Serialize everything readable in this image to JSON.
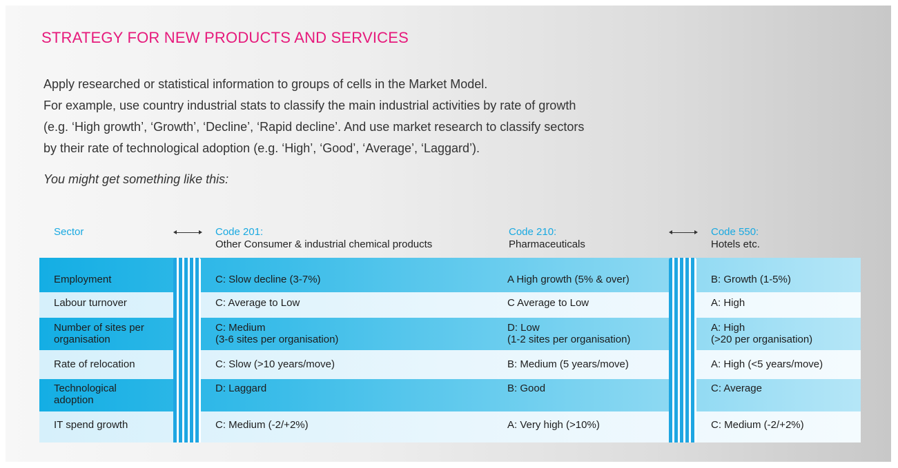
{
  "title": "STRATEGY FOR NEW PRODUCTS AND SERVICES",
  "intro_lines": [
    "Apply researched or statistical information to groups of cells in the Market Model.",
    "For example, use country industrial stats to classify the main industrial activities by rate of growth",
    "(e.g. ‘High growth’, ‘Growth’, ‘Decline’, ‘Rapid decline’.  And use market research to classify sectors",
    "by their rate of technological adoption (e.g. ‘High’, ‘Good’, ‘Average’, ‘Laggard’)."
  ],
  "note": "You might get something like this:",
  "colors": {
    "title": "#e6197b",
    "accent_blue": "#19a9e1",
    "stripe_blue": "#1ea6e2"
  },
  "table": {
    "headers": {
      "sector": "Sector",
      "col1_code": "Code 201:",
      "col1_name": "Other Consumer & industrial chemical products",
      "col2_code": "Code 210:",
      "col2_name": "Pharmaceuticals",
      "col3_code": "Code 550:",
      "col3_name": "Hotels etc."
    },
    "rows": [
      {
        "sector": "Employment",
        "c1": "C: Slow decline (3-7%)",
        "c2": "A High growth (5% & over)",
        "c3": "B: Growth (1-5%)"
      },
      {
        "sector": "Labour turnover",
        "c1": "C: Average to Low",
        "c2": "C Average to Low",
        "c3": "A: High"
      },
      {
        "sector_l1": "Number of sites per",
        "sector_l2": "organisation",
        "c1_l1": "C: Medium",
        "c1_l2": "(3-6 sites per organisation)",
        "c2_l1": "D: Low",
        "c2_l2": "(1-2 sites per organisation)",
        "c3_l1": "A: High",
        "c3_l2": "(>20 per organisation)"
      },
      {
        "sector": "Rate of relocation",
        "c1": "C: Slow (>10 years/move)",
        "c2": "B: Medium (5 years/move)",
        "c3": "A: High (<5 years/move)"
      },
      {
        "sector_l1": "Technological",
        "sector_l2": "adoption",
        "c1": "D: Laggard",
        "c2": "B: Good",
        "c3": "C: Average"
      },
      {
        "sector": "IT spend growth",
        "c1": "C: Medium (-2/+2%)",
        "c2": "A:  Very high (>10%)",
        "c3": "C: Medium (-2/+2%)"
      }
    ]
  }
}
